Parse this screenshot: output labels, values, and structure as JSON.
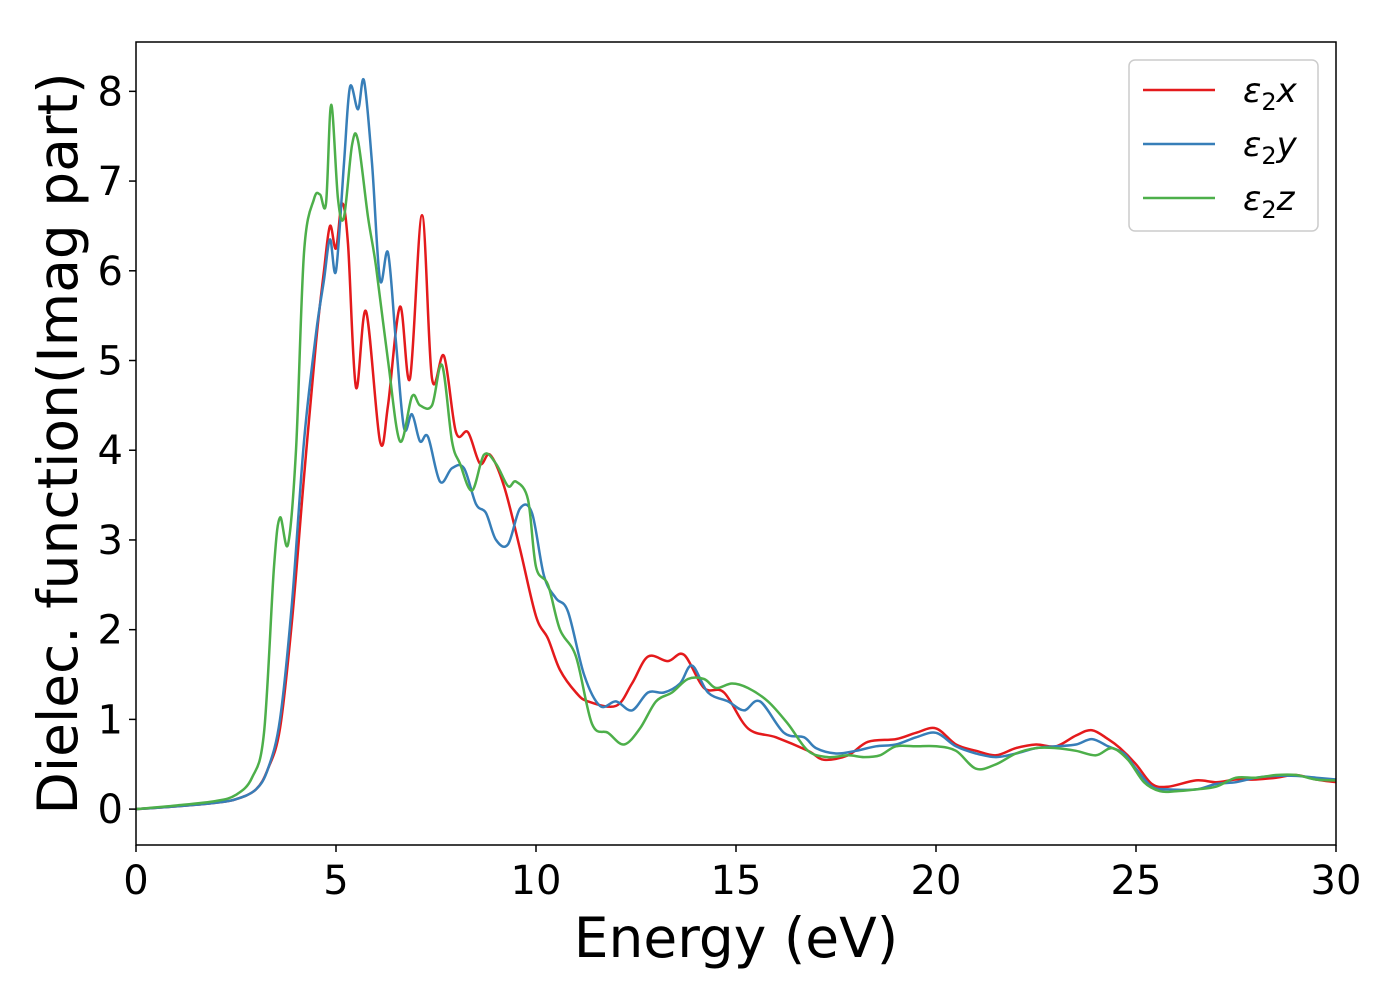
{
  "chart_data": {
    "type": "line",
    "xlabel": "Energy (eV)",
    "ylabel": "Dielec. function(Imag part)",
    "xlim": [
      0,
      30
    ],
    "ylim": [
      -0.4,
      8.55
    ],
    "xticks": [
      "0",
      "5",
      "10",
      "15",
      "20",
      "25",
      "30"
    ],
    "yticks": [
      "0",
      "1",
      "2",
      "3",
      "4",
      "5",
      "6",
      "7",
      "8"
    ],
    "grid": false,
    "legend_position": "top-right",
    "series": [
      {
        "name": "ε₂x",
        "legend": {
          "base": "ε",
          "sub": "2",
          "var": "x"
        },
        "color": "#e41a1c",
        "points": [
          [
            0,
            0
          ],
          [
            1,
            0.03
          ],
          [
            2,
            0.07
          ],
          [
            2.5,
            0.11
          ],
          [
            3,
            0.22
          ],
          [
            3.3,
            0.45
          ],
          [
            3.6,
            0.9
          ],
          [
            3.9,
            2.1
          ],
          [
            4.2,
            3.7
          ],
          [
            4.5,
            5.2
          ],
          [
            4.7,
            6.0
          ],
          [
            4.85,
            6.5
          ],
          [
            5.0,
            6.25
          ],
          [
            5.15,
            6.75
          ],
          [
            5.3,
            6.3
          ],
          [
            5.5,
            4.7
          ],
          [
            5.75,
            5.55
          ],
          [
            6.1,
            4.1
          ],
          [
            6.3,
            4.5
          ],
          [
            6.6,
            5.6
          ],
          [
            6.85,
            4.8
          ],
          [
            7.15,
            6.62
          ],
          [
            7.4,
            4.8
          ],
          [
            7.7,
            5.05
          ],
          [
            8.0,
            4.2
          ],
          [
            8.3,
            4.2
          ],
          [
            8.6,
            3.85
          ],
          [
            8.85,
            3.95
          ],
          [
            9.2,
            3.6
          ],
          [
            9.6,
            2.9
          ],
          [
            10.0,
            2.15
          ],
          [
            10.3,
            1.9
          ],
          [
            10.6,
            1.55
          ],
          [
            11.0,
            1.3
          ],
          [
            11.3,
            1.2
          ],
          [
            12.0,
            1.15
          ],
          [
            12.4,
            1.4
          ],
          [
            12.8,
            1.7
          ],
          [
            13.3,
            1.65
          ],
          [
            13.7,
            1.72
          ],
          [
            14.2,
            1.35
          ],
          [
            14.7,
            1.3
          ],
          [
            15.3,
            0.9
          ],
          [
            16.0,
            0.8
          ],
          [
            16.8,
            0.65
          ],
          [
            17.2,
            0.55
          ],
          [
            17.8,
            0.6
          ],
          [
            18.3,
            0.75
          ],
          [
            19.0,
            0.78
          ],
          [
            19.5,
            0.85
          ],
          [
            20.0,
            0.9
          ],
          [
            20.5,
            0.72
          ],
          [
            21.0,
            0.65
          ],
          [
            21.5,
            0.6
          ],
          [
            22.0,
            0.68
          ],
          [
            22.5,
            0.72
          ],
          [
            23.0,
            0.7
          ],
          [
            23.5,
            0.82
          ],
          [
            23.9,
            0.88
          ],
          [
            24.3,
            0.78
          ],
          [
            24.6,
            0.68
          ],
          [
            25.0,
            0.5
          ],
          [
            25.4,
            0.28
          ],
          [
            25.8,
            0.25
          ],
          [
            26.5,
            0.32
          ],
          [
            27.0,
            0.3
          ],
          [
            27.5,
            0.33
          ],
          [
            28.0,
            0.33
          ],
          [
            28.5,
            0.35
          ],
          [
            29.0,
            0.38
          ],
          [
            29.5,
            0.33
          ],
          [
            30,
            0.3
          ]
        ]
      },
      {
        "name": "ε₂y",
        "legend": {
          "base": "ε",
          "sub": "2",
          "var": "y"
        },
        "color": "#377eb8",
        "points": [
          [
            0,
            0
          ],
          [
            1,
            0.03
          ],
          [
            2,
            0.07
          ],
          [
            2.5,
            0.11
          ],
          [
            3,
            0.22
          ],
          [
            3.3,
            0.45
          ],
          [
            3.6,
            1.0
          ],
          [
            3.9,
            2.3
          ],
          [
            4.2,
            4.1
          ],
          [
            4.5,
            5.3
          ],
          [
            4.7,
            5.9
          ],
          [
            4.85,
            6.35
          ],
          [
            5.0,
            6.0
          ],
          [
            5.2,
            7.2
          ],
          [
            5.35,
            8.05
          ],
          [
            5.55,
            7.8
          ],
          [
            5.7,
            8.12
          ],
          [
            5.9,
            7.2
          ],
          [
            6.1,
            5.9
          ],
          [
            6.3,
            6.2
          ],
          [
            6.5,
            5.2
          ],
          [
            6.7,
            4.25
          ],
          [
            6.9,
            4.4
          ],
          [
            7.1,
            4.1
          ],
          [
            7.3,
            4.15
          ],
          [
            7.6,
            3.65
          ],
          [
            7.9,
            3.8
          ],
          [
            8.2,
            3.8
          ],
          [
            8.5,
            3.4
          ],
          [
            8.75,
            3.3
          ],
          [
            9.0,
            3.0
          ],
          [
            9.3,
            2.95
          ],
          [
            9.6,
            3.35
          ],
          [
            9.9,
            3.3
          ],
          [
            10.2,
            2.6
          ],
          [
            10.5,
            2.35
          ],
          [
            10.8,
            2.2
          ],
          [
            11.2,
            1.5
          ],
          [
            11.6,
            1.15
          ],
          [
            12.0,
            1.2
          ],
          [
            12.4,
            1.1
          ],
          [
            12.8,
            1.3
          ],
          [
            13.2,
            1.3
          ],
          [
            13.6,
            1.4
          ],
          [
            13.9,
            1.6
          ],
          [
            14.3,
            1.3
          ],
          [
            14.8,
            1.2
          ],
          [
            15.2,
            1.1
          ],
          [
            15.6,
            1.2
          ],
          [
            16.2,
            0.85
          ],
          [
            16.7,
            0.8
          ],
          [
            17.0,
            0.68
          ],
          [
            17.5,
            0.62
          ],
          [
            18.0,
            0.65
          ],
          [
            18.5,
            0.7
          ],
          [
            19.0,
            0.72
          ],
          [
            19.5,
            0.8
          ],
          [
            20.0,
            0.85
          ],
          [
            20.5,
            0.7
          ],
          [
            21.0,
            0.62
          ],
          [
            21.5,
            0.58
          ],
          [
            22.0,
            0.62
          ],
          [
            22.5,
            0.68
          ],
          [
            23.0,
            0.7
          ],
          [
            23.5,
            0.72
          ],
          [
            23.9,
            0.78
          ],
          [
            24.3,
            0.7
          ],
          [
            24.7,
            0.62
          ],
          [
            25.0,
            0.45
          ],
          [
            25.4,
            0.25
          ],
          [
            25.8,
            0.22
          ],
          [
            26.5,
            0.22
          ],
          [
            27.0,
            0.28
          ],
          [
            27.5,
            0.3
          ],
          [
            28.0,
            0.35
          ],
          [
            28.5,
            0.37
          ],
          [
            29.0,
            0.37
          ],
          [
            29.5,
            0.35
          ],
          [
            30,
            0.33
          ]
        ]
      },
      {
        "name": "ε₂z",
        "legend": {
          "base": "ε",
          "sub": "2",
          "var": "z"
        },
        "color": "#4daf4a",
        "points": [
          [
            0,
            0
          ],
          [
            1,
            0.04
          ],
          [
            2,
            0.09
          ],
          [
            2.5,
            0.16
          ],
          [
            2.9,
            0.35
          ],
          [
            3.2,
            0.85
          ],
          [
            3.45,
            2.7
          ],
          [
            3.6,
            3.25
          ],
          [
            3.8,
            2.95
          ],
          [
            4.0,
            4.0
          ],
          [
            4.2,
            6.2
          ],
          [
            4.45,
            6.8
          ],
          [
            4.6,
            6.85
          ],
          [
            4.75,
            6.75
          ],
          [
            4.88,
            7.85
          ],
          [
            5.05,
            6.8
          ],
          [
            5.2,
            6.6
          ],
          [
            5.4,
            7.4
          ],
          [
            5.55,
            7.45
          ],
          [
            5.8,
            6.6
          ],
          [
            6.0,
            6.05
          ],
          [
            6.3,
            5.0
          ],
          [
            6.6,
            4.1
          ],
          [
            6.9,
            4.6
          ],
          [
            7.1,
            4.5
          ],
          [
            7.4,
            4.5
          ],
          [
            7.65,
            4.95
          ],
          [
            7.9,
            4.1
          ],
          [
            8.1,
            3.85
          ],
          [
            8.4,
            3.55
          ],
          [
            8.7,
            3.95
          ],
          [
            9.0,
            3.85
          ],
          [
            9.3,
            3.6
          ],
          [
            9.5,
            3.65
          ],
          [
            9.8,
            3.45
          ],
          [
            10.0,
            2.7
          ],
          [
            10.3,
            2.5
          ],
          [
            10.6,
            2.0
          ],
          [
            11.0,
            1.7
          ],
          [
            11.4,
            0.95
          ],
          [
            11.8,
            0.85
          ],
          [
            12.2,
            0.72
          ],
          [
            12.6,
            0.9
          ],
          [
            13.0,
            1.2
          ],
          [
            13.4,
            1.3
          ],
          [
            13.8,
            1.45
          ],
          [
            14.2,
            1.45
          ],
          [
            14.5,
            1.35
          ],
          [
            14.9,
            1.4
          ],
          [
            15.3,
            1.35
          ],
          [
            15.8,
            1.2
          ],
          [
            16.3,
            0.95
          ],
          [
            16.8,
            0.65
          ],
          [
            17.3,
            0.58
          ],
          [
            17.8,
            0.6
          ],
          [
            18.2,
            0.58
          ],
          [
            18.6,
            0.6
          ],
          [
            19.0,
            0.7
          ],
          [
            19.5,
            0.7
          ],
          [
            20.0,
            0.7
          ],
          [
            20.5,
            0.65
          ],
          [
            21.0,
            0.45
          ],
          [
            21.5,
            0.5
          ],
          [
            22.0,
            0.62
          ],
          [
            22.5,
            0.68
          ],
          [
            23.0,
            0.68
          ],
          [
            23.5,
            0.65
          ],
          [
            24.0,
            0.6
          ],
          [
            24.4,
            0.68
          ],
          [
            24.8,
            0.55
          ],
          [
            25.2,
            0.3
          ],
          [
            25.6,
            0.2
          ],
          [
            26.0,
            0.2
          ],
          [
            26.5,
            0.22
          ],
          [
            27.0,
            0.25
          ],
          [
            27.5,
            0.35
          ],
          [
            28.0,
            0.35
          ],
          [
            28.5,
            0.38
          ],
          [
            29.0,
            0.38
          ],
          [
            29.5,
            0.33
          ],
          [
            30,
            0.32
          ]
        ]
      }
    ]
  }
}
